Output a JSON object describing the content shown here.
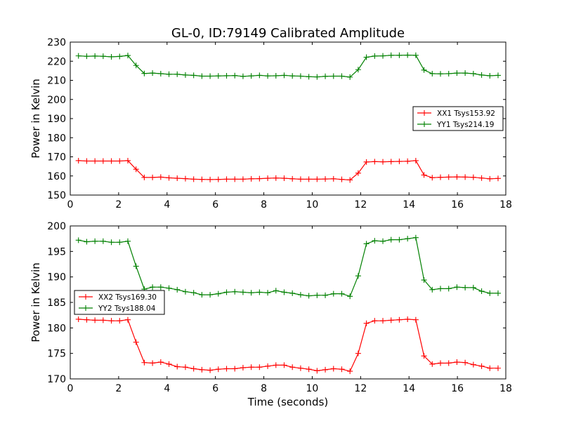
{
  "figure": {
    "title": "GL-0, ID:79149 Calibrated Amplitude",
    "xlabel": "Time (seconds)"
  },
  "colors": {
    "red": "#ff0000",
    "green": "#008000",
    "background": "#ffffff",
    "axis": "#000000"
  },
  "chart_data": [
    {
      "type": "line",
      "title": "GL-0, ID:79149 Calibrated Amplitude",
      "xlabel": "",
      "ylabel": "Power in Kelvin",
      "xlim": [
        0,
        18
      ],
      "ylim": [
        150,
        230
      ],
      "xticks": [
        0,
        2,
        4,
        6,
        8,
        10,
        12,
        14,
        16,
        18
      ],
      "yticks": [
        150,
        160,
        170,
        180,
        190,
        200,
        210,
        220,
        230
      ],
      "grid": false,
      "legend_position": "center-right",
      "marker": "plus",
      "x": [
        0.34,
        0.68,
        1.02,
        1.36,
        1.7,
        2.04,
        2.38,
        2.72,
        3.06,
        3.4,
        3.74,
        4.08,
        4.42,
        4.76,
        5.1,
        5.44,
        5.78,
        6.12,
        6.46,
        6.8,
        7.14,
        7.48,
        7.82,
        8.16,
        8.5,
        8.84,
        9.18,
        9.52,
        9.86,
        10.2,
        10.54,
        10.88,
        11.22,
        11.56,
        11.9,
        12.24,
        12.58,
        12.92,
        13.26,
        13.6,
        13.94,
        14.28,
        14.62,
        14.96,
        15.3,
        15.64,
        15.98,
        16.32,
        16.66,
        17.0,
        17.34,
        17.68
      ],
      "series": [
        {
          "name": "XX1 Tsys153.92",
          "color": "#ff0000",
          "values": [
            168.0,
            167.8,
            167.8,
            167.8,
            167.8,
            167.8,
            168.0,
            163.5,
            159.2,
            159.2,
            159.4,
            159.0,
            158.8,
            158.6,
            158.3,
            158.2,
            158.1,
            158.2,
            158.3,
            158.3,
            158.3,
            158.5,
            158.6,
            158.8,
            158.9,
            158.8,
            158.5,
            158.3,
            158.3,
            158.3,
            158.4,
            158.5,
            158.2,
            157.9,
            161.5,
            167.3,
            167.5,
            167.4,
            167.5,
            167.6,
            167.7,
            168.0,
            160.5,
            159.1,
            159.3,
            159.4,
            159.5,
            159.4,
            159.3,
            158.9,
            158.5,
            158.7
          ]
        },
        {
          "name": "YY1 Tsys214.19",
          "color": "#008000",
          "values": [
            222.8,
            222.6,
            222.7,
            222.6,
            222.3,
            222.5,
            223.0,
            217.8,
            213.6,
            213.8,
            213.5,
            213.2,
            213.2,
            212.8,
            212.6,
            212.2,
            212.2,
            212.3,
            212.4,
            212.5,
            212.1,
            212.3,
            212.6,
            212.3,
            212.4,
            212.6,
            212.3,
            212.2,
            211.9,
            211.8,
            212.1,
            212.2,
            212.2,
            211.7,
            215.6,
            222.1,
            222.7,
            222.8,
            223.1,
            223.1,
            223.2,
            223.1,
            215.4,
            213.5,
            213.4,
            213.5,
            213.8,
            213.8,
            213.5,
            212.8,
            212.4,
            212.6
          ]
        }
      ]
    },
    {
      "type": "line",
      "title": "",
      "xlabel": "Time (seconds)",
      "ylabel": "Power in Kelvin",
      "xlim": [
        0,
        18
      ],
      "ylim": [
        170,
        200
      ],
      "xticks": [
        0,
        2,
        4,
        6,
        8,
        10,
        12,
        14,
        16,
        18
      ],
      "yticks": [
        170,
        175,
        180,
        185,
        190,
        195,
        200
      ],
      "grid": false,
      "legend_position": "center-left",
      "marker": "plus",
      "x": [
        0.34,
        0.68,
        1.02,
        1.36,
        1.7,
        2.04,
        2.38,
        2.72,
        3.06,
        3.4,
        3.74,
        4.08,
        4.42,
        4.76,
        5.1,
        5.44,
        5.78,
        6.12,
        6.46,
        6.8,
        7.14,
        7.48,
        7.82,
        8.16,
        8.5,
        8.84,
        9.18,
        9.52,
        9.86,
        10.2,
        10.54,
        10.88,
        11.22,
        11.56,
        11.9,
        12.24,
        12.58,
        12.92,
        13.26,
        13.6,
        13.94,
        14.28,
        14.62,
        14.96,
        15.3,
        15.64,
        15.98,
        16.32,
        16.66,
        17.0,
        17.34,
        17.68
      ],
      "series": [
        {
          "name": "XX2 Tsys169.30",
          "color": "#ff0000",
          "values": [
            181.7,
            181.6,
            181.5,
            181.5,
            181.4,
            181.4,
            181.6,
            177.2,
            173.2,
            173.1,
            173.3,
            172.9,
            172.4,
            172.3,
            172.0,
            171.8,
            171.7,
            171.9,
            172.0,
            172.0,
            172.2,
            172.3,
            172.3,
            172.5,
            172.7,
            172.7,
            172.3,
            172.1,
            171.9,
            171.6,
            171.8,
            172.0,
            171.9,
            171.5,
            175.0,
            180.9,
            181.4,
            181.4,
            181.5,
            181.6,
            181.7,
            181.6,
            174.5,
            172.9,
            173.1,
            173.1,
            173.3,
            173.2,
            172.8,
            172.5,
            172.1,
            172.1
          ]
        },
        {
          "name": "YY2 Tsys188.04",
          "color": "#008000",
          "values": [
            197.2,
            196.9,
            197.0,
            197.0,
            196.8,
            196.8,
            197.0,
            192.1,
            187.6,
            188.0,
            188.0,
            187.8,
            187.5,
            187.1,
            186.9,
            186.5,
            186.5,
            186.7,
            187.0,
            187.1,
            187.0,
            186.9,
            187.0,
            186.9,
            187.3,
            187.0,
            186.8,
            186.5,
            186.3,
            186.4,
            186.4,
            186.7,
            186.7,
            186.2,
            190.2,
            196.5,
            197.1,
            197.0,
            197.3,
            197.3,
            197.5,
            197.7,
            189.4,
            187.5,
            187.7,
            187.7,
            188.0,
            187.9,
            187.9,
            187.2,
            186.8,
            186.8
          ]
        }
      ]
    }
  ]
}
